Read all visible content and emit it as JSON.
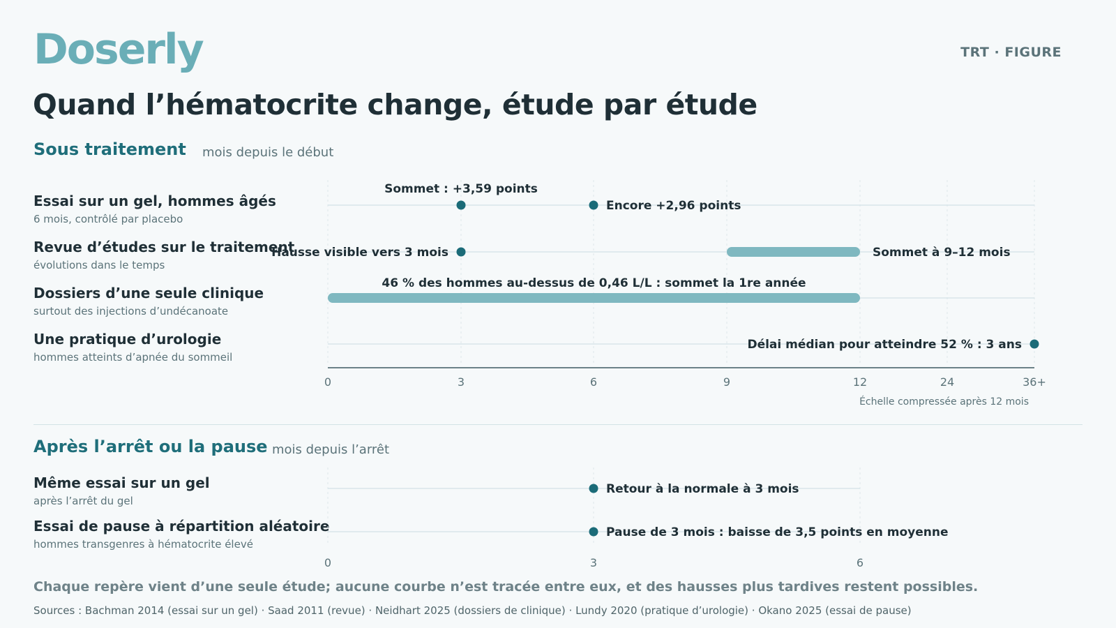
{
  "header": {
    "brand": "Doserly",
    "tag": "TRT · FIGURE",
    "title": "Quand l’hématocrite change, étude par étude"
  },
  "footnote": "Chaque repère vient d’une seule étude; aucune courbe n’est tracée entre eux, et des hausses plus tardives restent possibles.",
  "sources": "Sources : Bachman 2014 (essai sur un gel) · Saad 2011 (revue) · Neidhart 2025 (dossiers de clinique) · Lundy 2020 (pratique d’urologie) · Okano 2025 (essai de pause)",
  "colors": {
    "dot": "#1b6b78",
    "bar": "#7fb8c0",
    "track": "#d8e6e9",
    "axis": "#3f5a62"
  },
  "chart_data": [
    {
      "type": "timeline",
      "title": "Sous traitement",
      "xlabel": "mois depuis le début",
      "ticks": [
        "0",
        "3",
        "6",
        "9",
        "12",
        "24",
        "36+"
      ],
      "tick_values": [
        0,
        3,
        6,
        9,
        12,
        24,
        36
      ],
      "xlim": [
        0,
        36
      ],
      "scale_note": "Échelle compressée après 12 mois",
      "rows": [
        {
          "label": "Essai sur un gel, hommes âgés",
          "sub": "6 mois, contrôlé par placebo",
          "track_end": 36,
          "marks": [
            {
              "kind": "point",
              "x": 3,
              "text": "Sommet : +3,59 points",
              "text_pos": "above"
            },
            {
              "kind": "point",
              "x": 6,
              "text": "Encore +2,96 points",
              "text_pos": "right"
            }
          ]
        },
        {
          "label": "Revue d’études sur le traitement",
          "sub": "évolutions dans le temps",
          "track_end": 36,
          "marks": [
            {
              "kind": "point",
              "x": 3,
              "text": "Hausse visible vers 3 mois",
              "text_pos": "left"
            },
            {
              "kind": "range",
              "x0": 9,
              "x1": 12,
              "text": "Sommet à 9–12 mois",
              "text_pos": "right"
            }
          ]
        },
        {
          "label": "Dossiers d’une seule clinique",
          "sub": "surtout des injections d’undécanoate",
          "track_end": 36,
          "marks": [
            {
              "kind": "range",
              "x0": 0,
              "x1": 12,
              "text": "46 % des hommes au-dessus de 0,46 L/L : sommet la 1re année",
              "text_pos": "above"
            }
          ]
        },
        {
          "label": "Une pratique d’urologie",
          "sub": "hommes atteints d’apnée du sommeil",
          "track_end": 36,
          "marks": [
            {
              "kind": "point",
              "x": 36,
              "text": "Délai médian pour atteindre 52 % : 3 ans",
              "text_pos": "left"
            }
          ]
        }
      ]
    },
    {
      "type": "timeline",
      "title": "Après l’arrêt ou la pause",
      "xlabel": "mois depuis l’arrêt",
      "ticks": [
        "0",
        "3",
        "6"
      ],
      "tick_values": [
        0,
        3,
        6
      ],
      "xlim": [
        0,
        6
      ],
      "rows": [
        {
          "label": "Même essai sur un gel",
          "sub": "après l’arrêt du gel",
          "track_end": 6,
          "marks": [
            {
              "kind": "point",
              "x": 3,
              "text": "Retour à la normale à 3 mois",
              "text_pos": "right"
            }
          ]
        },
        {
          "label": "Essai de pause à répartition aléatoire",
          "sub": "hommes transgenres à hématocrite élevé",
          "track_end": 6,
          "marks": [
            {
              "kind": "point",
              "x": 3,
              "text": "Pause de 3 mois : baisse de 3,5 points en moyenne",
              "text_pos": "right"
            }
          ]
        }
      ]
    }
  ]
}
